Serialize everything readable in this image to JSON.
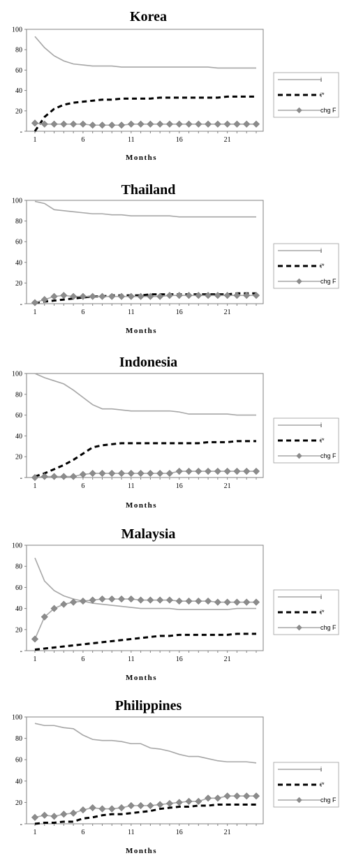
{
  "colors": {
    "i_line": "#a6a6a6",
    "istar_line": "#000000",
    "chgF_line": "#a6a6a6",
    "chgF_marker": "#8c8c8c",
    "frame": "#808080"
  },
  "chart_data": [
    {
      "type": "line",
      "title": "Korea",
      "xlabel": "Months",
      "ylabel": "",
      "ylim": [
        0,
        100
      ],
      "y_ticks": [
        "100",
        "80",
        "60",
        "40",
        "20",
        "-"
      ],
      "x_tick_labels": [
        "1",
        "6",
        "11",
        "16",
        "21"
      ],
      "x": [
        1,
        2,
        3,
        4,
        5,
        6,
        7,
        8,
        9,
        10,
        11,
        12,
        13,
        14,
        15,
        16,
        17,
        18,
        19,
        20,
        21,
        22,
        23,
        24
      ],
      "legend": [
        "i",
        "i*",
        "chg F"
      ],
      "legend_position": "right",
      "series": [
        {
          "name": "i",
          "style": "solid",
          "values": [
            93,
            82,
            74,
            69,
            66,
            65,
            64,
            64,
            64,
            63,
            63,
            63,
            63,
            63,
            63,
            63,
            63,
            63,
            63,
            62,
            62,
            62,
            62,
            62
          ]
        },
        {
          "name": "i*",
          "style": "dashed",
          "values": [
            0,
            14,
            22,
            26,
            28,
            29,
            30,
            31,
            31,
            32,
            32,
            32,
            32,
            33,
            33,
            33,
            33,
            33,
            33,
            33,
            34,
            34,
            34,
            34
          ]
        },
        {
          "name": "chg F",
          "style": "marker",
          "values": [
            8,
            7,
            7,
            7,
            7,
            7,
            6,
            6,
            6,
            6,
            7,
            7,
            7,
            7,
            7,
            7,
            7,
            7,
            7,
            7,
            7,
            7,
            7,
            7
          ]
        }
      ]
    },
    {
      "type": "line",
      "title": "Thailand",
      "xlabel": "Months",
      "ylabel": "",
      "ylim": [
        0,
        100
      ],
      "y_ticks": [
        "100",
        "80",
        "60",
        "40",
        "20",
        "-"
      ],
      "x_tick_labels": [
        "1",
        "6",
        "11",
        "16",
        "21"
      ],
      "x": [
        1,
        2,
        3,
        4,
        5,
        6,
        7,
        8,
        9,
        10,
        11,
        12,
        13,
        14,
        15,
        16,
        17,
        18,
        19,
        20,
        21,
        22,
        23,
        24
      ],
      "legend": [
        "i",
        "i*",
        "chg F"
      ],
      "legend_position": "right",
      "series": [
        {
          "name": "i",
          "style": "solid",
          "values": [
            99,
            97,
            91,
            90,
            89,
            88,
            87,
            87,
            86,
            86,
            85,
            85,
            85,
            85,
            85,
            84,
            84,
            84,
            84,
            84,
            84,
            84,
            84,
            84
          ]
        },
        {
          "name": "i*",
          "style": "dashed",
          "values": [
            1,
            2,
            3,
            4,
            5,
            6,
            7,
            7,
            8,
            8,
            8,
            8,
            9,
            9,
            9,
            9,
            9,
            9,
            9,
            9,
            9,
            10,
            10,
            10
          ]
        },
        {
          "name": "chg F",
          "style": "marker",
          "values": [
            1,
            4,
            7,
            8,
            7,
            7,
            7,
            7,
            7,
            7,
            7,
            7,
            7,
            7,
            8,
            8,
            8,
            8,
            8,
            8,
            8,
            8,
            8,
            8
          ]
        }
      ]
    },
    {
      "type": "line",
      "title": "Indonesia",
      "xlabel": "Months",
      "ylabel": "",
      "ylim": [
        0,
        100
      ],
      "y_ticks": [
        "100",
        "80",
        "60",
        "40",
        "20",
        "-"
      ],
      "x_tick_labels": [
        "1",
        "6",
        "11",
        "16",
        "21"
      ],
      "x": [
        1,
        2,
        3,
        4,
        5,
        6,
        7,
        8,
        9,
        10,
        11,
        12,
        13,
        14,
        15,
        16,
        17,
        18,
        19,
        20,
        21,
        22,
        23,
        24
      ],
      "legend": [
        "i",
        "i*",
        "chg F"
      ],
      "legend_position": "right",
      "series": [
        {
          "name": "i",
          "style": "solid",
          "values": [
            100,
            96,
            93,
            90,
            84,
            77,
            70,
            66,
            66,
            65,
            64,
            64,
            64,
            64,
            64,
            63,
            61,
            61,
            61,
            61,
            61,
            60,
            60,
            60
          ]
        },
        {
          "name": "i*",
          "style": "dashed",
          "values": [
            1,
            4,
            8,
            12,
            17,
            23,
            29,
            31,
            32,
            33,
            33,
            33,
            33,
            33,
            33,
            33,
            33,
            33,
            34,
            34,
            34,
            35,
            35,
            35
          ]
        },
        {
          "name": "chg F",
          "style": "marker",
          "values": [
            0,
            1,
            1,
            1,
            1,
            3,
            4,
            4,
            4,
            4,
            4,
            4,
            4,
            4,
            4,
            6,
            6,
            6,
            6,
            6,
            6,
            6,
            6,
            6
          ]
        }
      ]
    },
    {
      "type": "line",
      "title": "Malaysia",
      "xlabel": "Months",
      "ylabel": "",
      "ylim": [
        0,
        100
      ],
      "y_ticks": [
        "100",
        "80",
        "60",
        "40",
        "20",
        "-"
      ],
      "x_tick_labels": [
        "1",
        "6",
        "11",
        "16",
        "21"
      ],
      "x": [
        1,
        2,
        3,
        4,
        5,
        6,
        7,
        8,
        9,
        10,
        11,
        12,
        13,
        14,
        15,
        16,
        17,
        18,
        19,
        20,
        21,
        22,
        23,
        24
      ],
      "legend": [
        "i",
        "i*",
        "chg F"
      ],
      "legend_position": "right",
      "series": [
        {
          "name": "i",
          "style": "solid",
          "values": [
            88,
            66,
            57,
            52,
            49,
            47,
            45,
            44,
            43,
            42,
            41,
            40,
            40,
            40,
            40,
            39,
            39,
            39,
            39,
            39,
            39,
            40,
            40,
            40
          ]
        },
        {
          "name": "i*",
          "style": "dashed",
          "values": [
            1,
            2,
            3,
            4,
            5,
            6,
            7,
            8,
            9,
            10,
            11,
            12,
            13,
            14,
            14,
            15,
            15,
            15,
            15,
            15,
            15,
            16,
            16,
            16
          ]
        },
        {
          "name": "chg F",
          "style": "marker",
          "values": [
            11,
            32,
            40,
            44,
            46,
            47,
            48,
            49,
            49,
            49,
            49,
            48,
            48,
            48,
            48,
            47,
            47,
            47,
            47,
            46,
            46,
            46,
            46,
            46
          ]
        }
      ]
    },
    {
      "type": "line",
      "title": "Philippines",
      "xlabel": "Months",
      "ylabel": "",
      "ylim": [
        0,
        100
      ],
      "y_ticks": [
        "100",
        "80",
        "60",
        "40",
        "20",
        "-"
      ],
      "x_tick_labels": [
        "1",
        "6",
        "11",
        "16",
        "21"
      ],
      "x": [
        1,
        2,
        3,
        4,
        5,
        6,
        7,
        8,
        9,
        10,
        11,
        12,
        13,
        14,
        15,
        16,
        17,
        18,
        19,
        20,
        21,
        22,
        23,
        24
      ],
      "legend": [
        "i",
        "i*",
        "chg F"
      ],
      "legend_position": "right",
      "series": [
        {
          "name": "i",
          "style": "solid",
          "values": [
            94,
            92,
            92,
            90,
            89,
            83,
            79,
            78,
            78,
            77,
            75,
            75,
            71,
            70,
            68,
            65,
            63,
            63,
            61,
            59,
            58,
            58,
            58,
            57
          ]
        },
        {
          "name": "i*",
          "style": "dashed",
          "values": [
            0,
            1,
            1,
            2,
            2,
            5,
            6,
            8,
            9,
            9,
            10,
            11,
            12,
            14,
            15,
            16,
            16,
            17,
            17,
            18,
            18,
            18,
            18,
            18
          ]
        },
        {
          "name": "chg F",
          "style": "marker",
          "values": [
            6,
            8,
            7,
            9,
            10,
            13,
            15,
            14,
            14,
            15,
            17,
            17,
            17,
            18,
            19,
            20,
            21,
            21,
            24,
            24,
            26,
            26,
            26,
            26
          ]
        }
      ]
    }
  ]
}
